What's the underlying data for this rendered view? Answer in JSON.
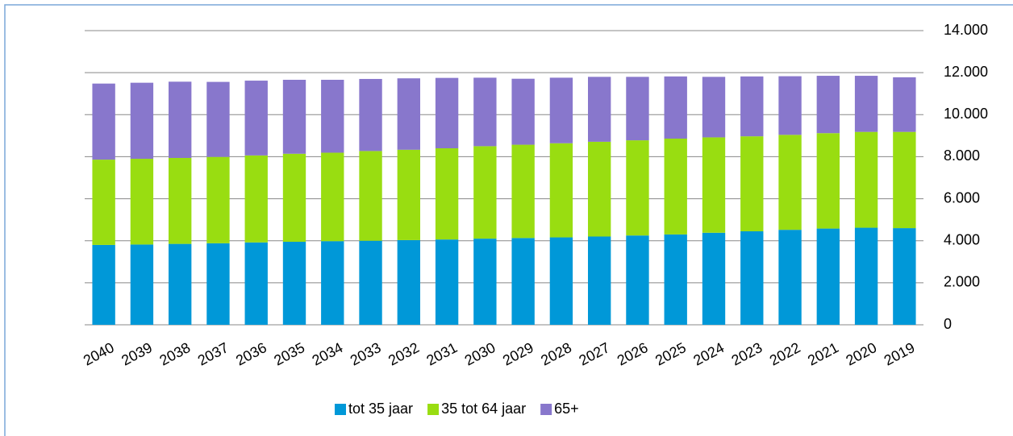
{
  "chart_data": {
    "type": "stacked_bar",
    "categories": [
      "2040",
      "2039",
      "2038",
      "2037",
      "2036",
      "2035",
      "2034",
      "2033",
      "2032",
      "2031",
      "2030",
      "2029",
      "2028",
      "2027",
      "2026",
      "2025",
      "2024",
      "2023",
      "2022",
      "2021",
      "2020",
      "2019"
    ],
    "series": [
      {
        "name": "tot 35 jaar",
        "color": "#0098d8",
        "values": [
          3800,
          3820,
          3850,
          3880,
          3920,
          3950,
          3980,
          4000,
          4030,
          4060,
          4100,
          4130,
          4160,
          4200,
          4250,
          4300,
          4380,
          4450,
          4520,
          4580,
          4620,
          4600
        ]
      },
      {
        "name": "35 tot 64 jaar",
        "color": "#99dd11",
        "values": [
          4060,
          4080,
          4090,
          4110,
          4140,
          4190,
          4210,
          4270,
          4300,
          4340,
          4400,
          4440,
          4480,
          4510,
          4530,
          4560,
          4540,
          4520,
          4520,
          4540,
          4560,
          4580
        ]
      },
      {
        "name": "65+",
        "color": "#8877cc",
        "values": [
          3620,
          3620,
          3630,
          3570,
          3560,
          3520,
          3470,
          3430,
          3400,
          3350,
          3260,
          3140,
          3120,
          3090,
          3020,
          2960,
          2880,
          2850,
          2790,
          2730,
          2670,
          2600
        ]
      }
    ],
    "ylim": [
      0,
      14000
    ],
    "yticks": [
      0,
      {
        "value": 2000,
        "label": "2.000"
      },
      {
        "value": 4000,
        "label": "4.000"
      },
      {
        "value": 6000,
        "label": "6.000"
      },
      {
        "value": 8000,
        "label": "8.000"
      },
      {
        "value": 10000,
        "label": "10.000"
      },
      {
        "value": 12000,
        "label": "12.000"
      },
      {
        "value": 14000,
        "label": "14.000"
      }
    ],
    "grid": true,
    "legend": "bottom"
  }
}
